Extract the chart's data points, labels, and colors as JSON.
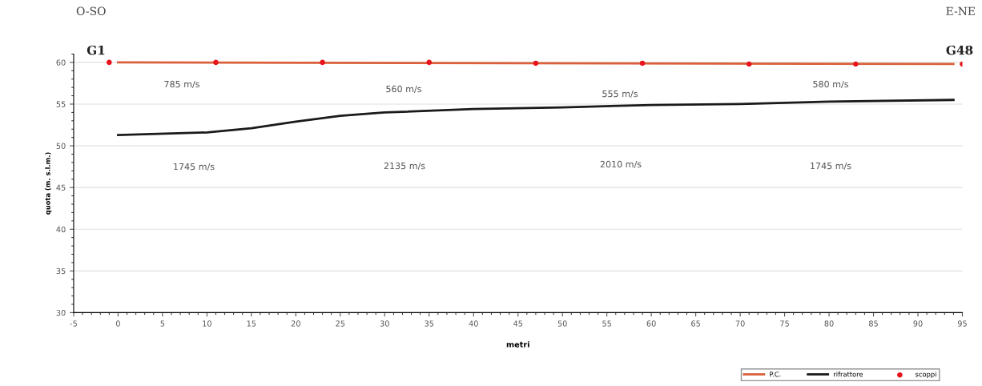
{
  "chart_data": {
    "type": "line",
    "xlabel": "metri",
    "ylabel": "quota (m. s.l.m.)",
    "xlim": [
      -5,
      95
    ],
    "xticks": [
      -5,
      0,
      5,
      10,
      15,
      20,
      25,
      30,
      35,
      40,
      45,
      50,
      55,
      60,
      65,
      70,
      75,
      80,
      85,
      90,
      95
    ],
    "ylim": [
      30,
      61
    ],
    "yticks": [
      30,
      35,
      40,
      45,
      50,
      55,
      60
    ],
    "grid": "y",
    "legend": "bottom right",
    "series": [
      {
        "name": "P.C.",
        "color": "#d9603a",
        "x": [
          0,
          94
        ],
        "values": [
          60,
          59.8
        ]
      },
      {
        "name": "rifrattore",
        "color": "#1a1a1a",
        "x": [
          0,
          10,
          15,
          20,
          25,
          30,
          40,
          50,
          60,
          70,
          80,
          94
        ],
        "values": [
          51.3,
          51.6,
          52.1,
          52.9,
          53.6,
          54.0,
          54.4,
          54.6,
          54.9,
          55.0,
          55.3,
          55.5
        ]
      },
      {
        "name": "scoppi",
        "type": "scatter",
        "marker": "circle",
        "color": "#e8141c",
        "x": [
          -1,
          11,
          23,
          35,
          47,
          59,
          71,
          83,
          95
        ],
        "values": [
          60,
          60,
          60,
          60,
          59.9,
          59.9,
          59.8,
          59.8,
          59.8
        ]
      }
    ],
    "annotations": [
      "O-SO",
      "E-NE",
      "G1",
      "G48",
      "785 m/s",
      "560 m/s",
      "555 m/s",
      "580 m/s",
      "1745 m/s",
      "2135 m/s",
      "2010 m/s",
      "1745 m/s"
    ]
  }
}
